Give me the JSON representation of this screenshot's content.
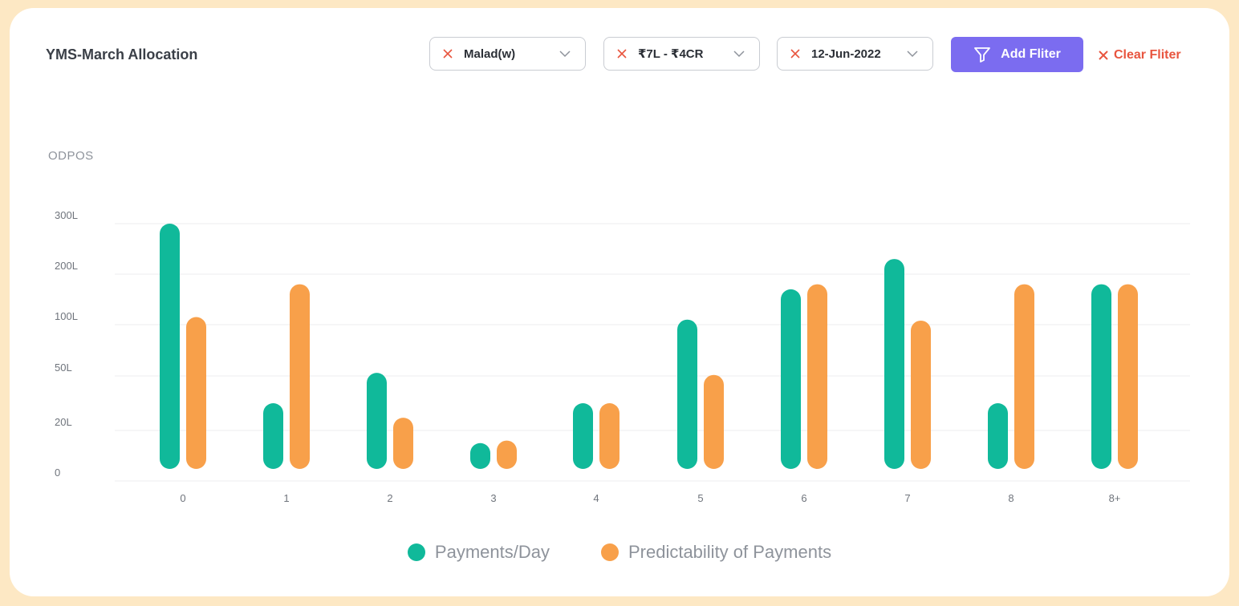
{
  "header": {
    "title": "YMS-March Allocation",
    "filters": [
      {
        "value": "Malad(w)"
      },
      {
        "value": "₹7L - ₹4CR"
      },
      {
        "value": "12-Jun-2022"
      }
    ],
    "add_filter_label": "Add Fliter",
    "clear_filter_label": "Clear Fliter"
  },
  "colors": {
    "series_1": "#10b99a",
    "series_2": "#f8a04a",
    "accent": "#7b6cf0",
    "clear": "#e8553f"
  },
  "chart_data": {
    "type": "bar",
    "ylabel": "ODPOS",
    "yticks": [
      "0",
      "20L",
      "50L",
      "100L",
      "200L",
      "300L"
    ],
    "ytick_values": [
      0,
      20,
      50,
      100,
      200,
      300
    ],
    "categories": [
      "0",
      "1",
      "2",
      "3",
      "4",
      "5",
      "6",
      "7",
      "8",
      "8+"
    ],
    "series": [
      {
        "name": "Payments/Day",
        "values": [
          300,
          35,
          53,
          15,
          35,
          110,
          170,
          230,
          35,
          180
        ]
      },
      {
        "name": "Predictability of Payments",
        "values": [
          115,
          180,
          27,
          16,
          35,
          51,
          180,
          108,
          180,
          180
        ]
      }
    ],
    "grid": true,
    "legend_position": "bottom-center"
  }
}
